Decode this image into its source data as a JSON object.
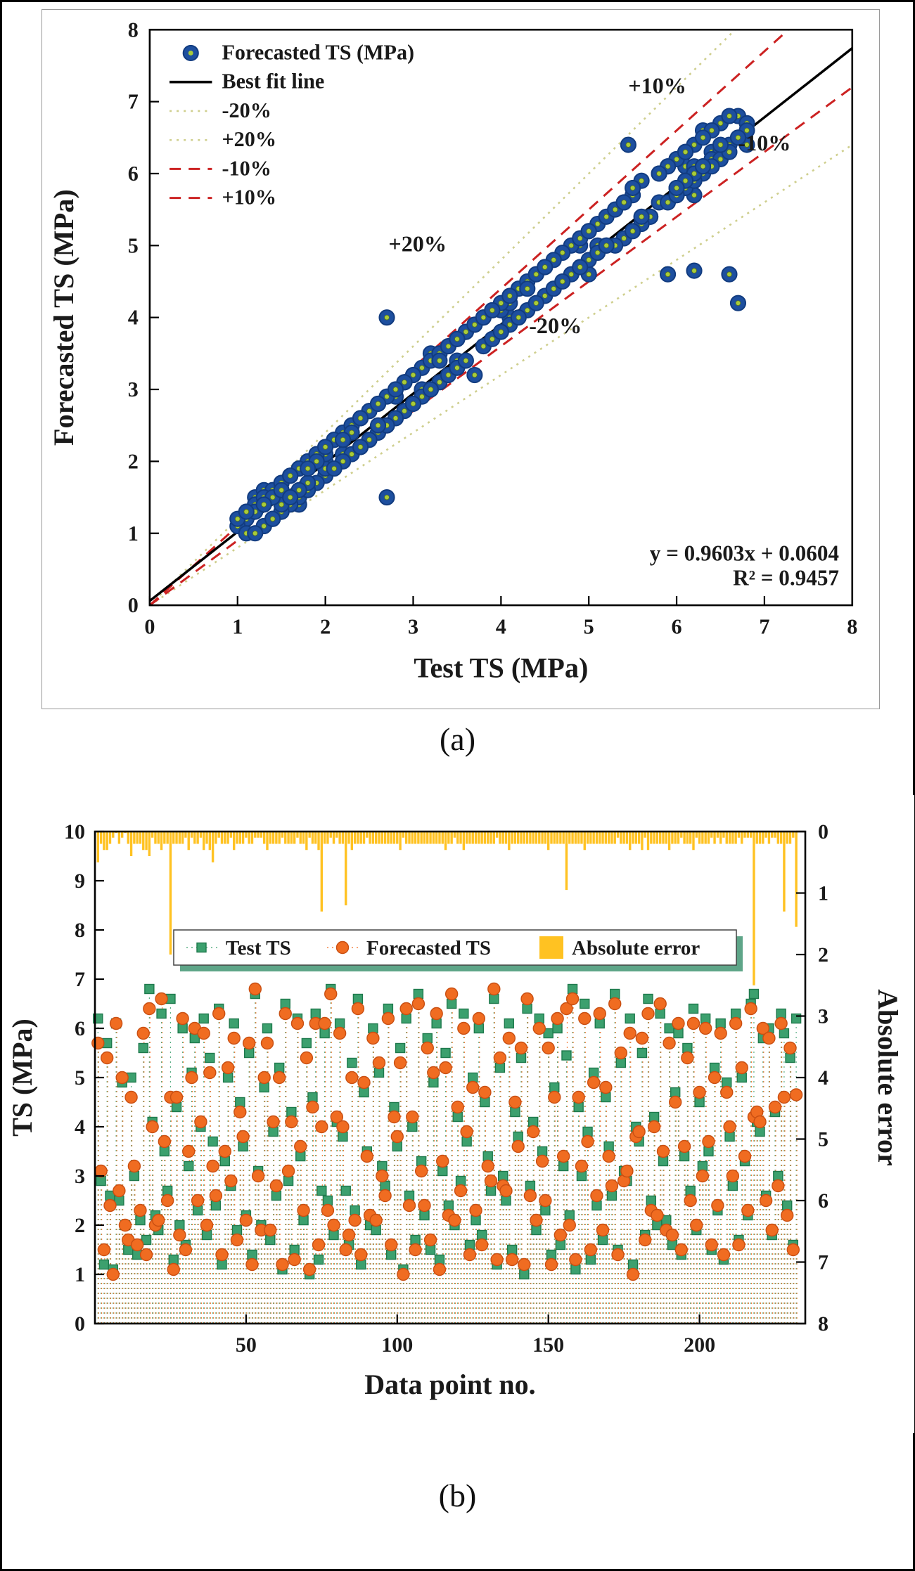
{
  "figure": {
    "caption_a": "(a)",
    "caption_b": "(b)"
  },
  "chart_data": [
    {
      "type": "scatter",
      "xlabel": "Test TS (MPa)",
      "ylabel": "Forecasted TS (MPa)",
      "xlim": [
        0,
        8
      ],
      "ylim": [
        0,
        8
      ],
      "xticks": [
        0,
        1,
        2,
        3,
        4,
        5,
        6,
        7,
        8
      ],
      "yticks": [
        0,
        1,
        2,
        3,
        4,
        5,
        6,
        7,
        8
      ],
      "grid": false,
      "legend_position": "top-left",
      "legend": [
        {
          "label": "Forecasted TS (MPa)",
          "style": "marker"
        },
        {
          "label": "Best fit line",
          "style": "fit"
        },
        {
          "label": "-20%",
          "style": "pct20"
        },
        {
          "label": "+20%",
          "style": "pct20"
        },
        {
          "label": "-10%",
          "style": "pct10"
        },
        {
          "label": "+10%",
          "style": "pct10"
        }
      ],
      "fit": {
        "slope": 0.9603,
        "intercept": 0.0604,
        "equation": "y = 0.9603x + 0.0604",
        "r2": "R² = 0.9457"
      },
      "reference_lines": [
        {
          "label": "+20%",
          "slope": 1.2,
          "style": "pct20"
        },
        {
          "label": "-20%",
          "slope": 0.8,
          "style": "pct20"
        },
        {
          "label": "+10%",
          "slope": 1.1,
          "style": "pct10"
        },
        {
          "label": "-10%",
          "slope": 0.9,
          "style": "pct10"
        }
      ],
      "annotations": [
        {
          "text": "+10%",
          "x": 5.78,
          "y": 7.12
        },
        {
          "text": "-10%",
          "x": 7.0,
          "y": 6.32
        },
        {
          "text": "+20%",
          "x": 3.05,
          "y": 4.92
        },
        {
          "text": "-20%",
          "x": 4.62,
          "y": 3.78
        }
      ],
      "colors": {
        "marker_fill": "#1d4f9f",
        "marker_stroke": "#123c80",
        "marker_center": "#a9cc3a",
        "fit_line": "#000000",
        "pct10_line": "#cc2222",
        "pct20_line": "#cfcf8e",
        "text": "#1a1a1a"
      },
      "points": [
        [
          6.2,
          5.7
        ],
        [
          2.9,
          3.1
        ],
        [
          1.2,
          1.5
        ],
        [
          5.7,
          5.4
        ],
        [
          2.6,
          2.4
        ],
        [
          1.1,
          1.0
        ],
        [
          6.1,
          6.1
        ],
        [
          2.5,
          2.7
        ],
        [
          4.9,
          5.0
        ],
        [
          2.0,
          2.0
        ],
        [
          1.5,
          1.7
        ],
        [
          5.0,
          4.6
        ],
        [
          3.0,
          3.2
        ],
        [
          1.4,
          1.6
        ],
        [
          2.1,
          2.3
        ],
        [
          5.6,
          5.9
        ],
        [
          1.7,
          1.4
        ],
        [
          6.8,
          6.4
        ],
        [
          4.1,
          4.0
        ],
        [
          2.2,
          2.0
        ],
        [
          1.9,
          2.1
        ],
        [
          6.3,
          6.6
        ],
        [
          3.5,
          3.7
        ],
        [
          2.7,
          2.5
        ],
        [
          6.6,
          4.6
        ],
        [
          1.3,
          1.1
        ],
        [
          4.4,
          4.6
        ],
        [
          2.0,
          1.8
        ],
        [
          6.0,
          6.2
        ],
        [
          1.6,
          1.5
        ],
        [
          3.2,
          3.5
        ],
        [
          5.1,
          5.0
        ],
        [
          5.8,
          6.0
        ],
        [
          2.3,
          2.5
        ],
        [
          4.0,
          4.1
        ],
        [
          6.2,
          5.9
        ],
        [
          1.8,
          2.0
        ],
        [
          5.4,
          5.1
        ],
        [
          3.7,
          3.2
        ],
        [
          2.4,
          2.6
        ],
        [
          6.4,
          6.3
        ],
        [
          1.2,
          1.4
        ],
        [
          3.3,
          3.5
        ],
        [
          5.0,
          5.2
        ],
        [
          2.8,
          2.9
        ],
        [
          6.1,
          5.8
        ],
        [
          1.9,
          1.7
        ],
        [
          4.5,
          4.3
        ],
        [
          3.6,
          3.8
        ],
        [
          2.2,
          2.1
        ],
        [
          5.5,
          5.7
        ],
        [
          1.4,
          1.2
        ],
        [
          6.7,
          6.8
        ],
        [
          3.1,
          3.0
        ],
        [
          2.0,
          1.9
        ],
        [
          4.8,
          5.0
        ],
        [
          6.0,
          5.7
        ],
        [
          1.7,
          1.9
        ],
        [
          3.9,
          4.1
        ],
        [
          2.6,
          2.8
        ],
        [
          5.2,
          5.0
        ],
        [
          1.1,
          1.2
        ],
        [
          6.5,
          6.3
        ],
        [
          2.9,
          3.1
        ],
        [
          4.3,
          4.1
        ],
        [
          1.5,
          1.3
        ],
        [
          6.2,
          6.1
        ],
        [
          3.4,
          3.6
        ],
        [
          2.1,
          2.3
        ],
        [
          5.7,
          5.4
        ],
        [
          1.0,
          1.1
        ],
        [
          4.6,
          4.4
        ],
        [
          6.3,
          6.1
        ],
        [
          1.3,
          1.6
        ],
        [
          2.7,
          4.0
        ],
        [
          5.9,
          6.1
        ],
        [
          2.5,
          2.3
        ],
        [
          6.8,
          6.7
        ],
        [
          1.8,
          2.0
        ],
        [
          4.1,
          4.2
        ],
        [
          6.1,
          5.9
        ],
        [
          3.8,
          4.0
        ],
        [
          2.7,
          1.5
        ],
        [
          1.6,
          1.8
        ],
        [
          5.3,
          5.0
        ],
        [
          2.3,
          2.1
        ],
        [
          6.6,
          6.4
        ],
        [
          1.2,
          1.4
        ],
        [
          4.7,
          4.9
        ],
        [
          3.5,
          3.4
        ],
        [
          2.0,
          2.2
        ],
        [
          6.0,
          5.8
        ],
        [
          1.9,
          2.1
        ],
        [
          5.1,
          5.3
        ],
        [
          3.2,
          3.0
        ],
        [
          2.8,
          2.6
        ],
        [
          6.4,
          6.2
        ],
        [
          1.4,
          1.6
        ],
        [
          4.4,
          4.2
        ],
        [
          3.6,
          3.8
        ],
        [
          5.6,
          5.3
        ],
        [
          1.1,
          1.0
        ],
        [
          6.2,
          6.4
        ],
        [
          2.6,
          2.4
        ],
        [
          4.0,
          4.2
        ],
        [
          1.7,
          1.5
        ],
        [
          6.7,
          6.5
        ],
        [
          3.3,
          3.1
        ],
        [
          2.2,
          2.4
        ],
        [
          5.8,
          5.6
        ],
        [
          1.5,
          1.7
        ],
        [
          4.9,
          5.1
        ],
        [
          6.1,
          6.3
        ],
        [
          1.3,
          1.1
        ],
        [
          3.1,
          3.3
        ],
        [
          5.5,
          5.2
        ],
        [
          2.4,
          2.2
        ],
        [
          6.5,
          6.7
        ],
        [
          2.0,
          2.1
        ],
        [
          4.2,
          4.4
        ],
        [
          2.9,
          2.7
        ],
        [
          6.3,
          6.0
        ],
        [
          3.7,
          3.9
        ],
        [
          1.6,
          1.4
        ],
        [
          5.0,
          4.8
        ],
        [
          2.1,
          2.3
        ],
        [
          6.0,
          6.2
        ],
        [
          1.8,
          1.6
        ],
        [
          4.5,
          4.7
        ],
        [
          3.4,
          3.2
        ],
        [
          2.7,
          2.9
        ],
        [
          6.6,
          6.8
        ],
        [
          1.2,
          1.3
        ],
        [
          5.2,
          5.4
        ],
        [
          3.0,
          2.8
        ],
        [
          2.5,
          2.7
        ],
        [
          6.1,
          5.8
        ],
        [
          1.5,
          1.3
        ],
        [
          4.3,
          4.5
        ],
        [
          3.8,
          3.6
        ],
        [
          5.4,
          5.6
        ],
        [
          1.0,
          1.2
        ],
        [
          6.4,
          6.6
        ],
        [
          2.8,
          2.6
        ],
        [
          4.1,
          3.9
        ],
        [
          1.9,
          2.1
        ],
        [
          6.2,
          6.0
        ],
        [
          3.5,
          3.3
        ],
        [
          2.3,
          2.5
        ],
        [
          5.9,
          5.6
        ],
        [
          1.4,
          1.2
        ],
        [
          4.8,
          4.6
        ],
        [
          6.0,
          6.2
        ],
        [
          1.6,
          1.8
        ],
        [
          3.2,
          3.4
        ],
        [
          5.45,
          6.4
        ],
        [
          2.2,
          2.0
        ],
        [
          6.8,
          6.6
        ],
        [
          1.1,
          1.3
        ],
        [
          4.4,
          4.6
        ],
        [
          3.0,
          3.2
        ],
        [
          6.5,
          6.2
        ],
        [
          3.9,
          3.7
        ],
        [
          1.3,
          1.5
        ],
        [
          5.1,
          4.9
        ],
        [
          2.4,
          2.6
        ],
        [
          6.1,
          6.3
        ],
        [
          1.7,
          1.9
        ],
        [
          4.6,
          4.8
        ],
        [
          3.6,
          3.4
        ],
        [
          2.6,
          2.8
        ],
        [
          6.7,
          6.5
        ],
        [
          1.5,
          1.4
        ],
        [
          5.3,
          5.5
        ],
        [
          3.1,
          2.9
        ],
        [
          2.9,
          3.1
        ],
        [
          6.2,
          5.9
        ],
        [
          1.2,
          1.0
        ],
        [
          4.0,
          3.8
        ],
        [
          3.7,
          3.9
        ],
        [
          5.5,
          5.8
        ],
        [
          1.8,
          1.7
        ],
        [
          6.6,
          6.3
        ],
        [
          2.5,
          2.3
        ],
        [
          4.2,
          4.0
        ],
        [
          2.0,
          2.2
        ],
        [
          6.3,
          6.5
        ],
        [
          3.3,
          3.5
        ],
        [
          2.1,
          1.9
        ],
        [
          6.0,
          5.7
        ],
        [
          1.6,
          1.8
        ],
        [
          4.7,
          4.5
        ],
        [
          5.9,
          6.1
        ],
        [
          1.4,
          1.5
        ],
        [
          3.4,
          3.6
        ],
        [
          5.6,
          5.4
        ],
        [
          2.7,
          2.5
        ],
        [
          6.4,
          6.1
        ],
        [
          1.9,
          2.0
        ],
        [
          4.5,
          4.7
        ],
        [
          3.2,
          3.0
        ],
        [
          6.2,
          6.0
        ],
        [
          3.5,
          3.7
        ],
        [
          1.5,
          1.6
        ],
        [
          5.2,
          5.0
        ],
        [
          2.3,
          2.4
        ],
        [
          6.1,
          5.9
        ],
        [
          1.3,
          1.4
        ],
        [
          4.9,
          4.7
        ],
        [
          3.8,
          4.0
        ],
        [
          2.8,
          3.0
        ],
        [
          6.3,
          6.1
        ],
        [
          1.7,
          1.6
        ],
        [
          5.0,
          5.2
        ],
        [
          3.3,
          3.4
        ],
        [
          2.2,
          2.3
        ],
        [
          6.5,
          6.4
        ],
        [
          6.7,
          4.2
        ],
        [
          4.1,
          4.3
        ],
        [
          3.9,
          4.1
        ],
        [
          5.8,
          6.0
        ],
        [
          2.6,
          2.5
        ],
        [
          6.0,
          5.8
        ],
        [
          1.8,
          1.9
        ],
        [
          4.3,
          4.4
        ],
        [
          3.0,
          2.8
        ],
        [
          6.3,
          6.1
        ],
        [
          5.9,
          4.6
        ],
        [
          2.4,
          2.2
        ],
        [
          5.4,
          5.6
        ],
        [
          1.6,
          1.5
        ],
        [
          6.2,
          4.65
        ]
      ]
    },
    {
      "type": "scatter+bar",
      "xlabel": "Data point no.",
      "ylabel_left": "TS (MPa)",
      "ylabel_right": "Absolute error",
      "xticks": [
        50,
        100,
        150,
        200
      ],
      "xlim": [
        0,
        235
      ],
      "ylim_left": [
        0,
        10
      ],
      "yticks_left": [
        0,
        1,
        2,
        3,
        4,
        5,
        6,
        7,
        8,
        9,
        10
      ],
      "ylim_right": [
        0,
        8
      ],
      "yticks_right": [
        0,
        1,
        2,
        3,
        4,
        5,
        6,
        7,
        8
      ],
      "right_axis_inverted": true,
      "n_points": 232,
      "series_source": "chart_data[0].points  (column 0 = Test TS, column 1 = Forecasted TS, bar = |Test - Forecast|)",
      "legend": [
        {
          "label": "Test TS",
          "style": "square"
        },
        {
          "label": "Forecasted TS",
          "style": "circle"
        },
        {
          "label": "Absolute error",
          "style": "bar"
        }
      ],
      "colors": {
        "test_fill": "#3ca06e",
        "test_stroke": "#1f7a4d",
        "forecast_fill": "#f06c21",
        "forecast_stroke": "#c94f12",
        "error_bar": "#ffc222",
        "legend_shadow": "#5ea588",
        "text": "#1a1a1a"
      }
    }
  ]
}
